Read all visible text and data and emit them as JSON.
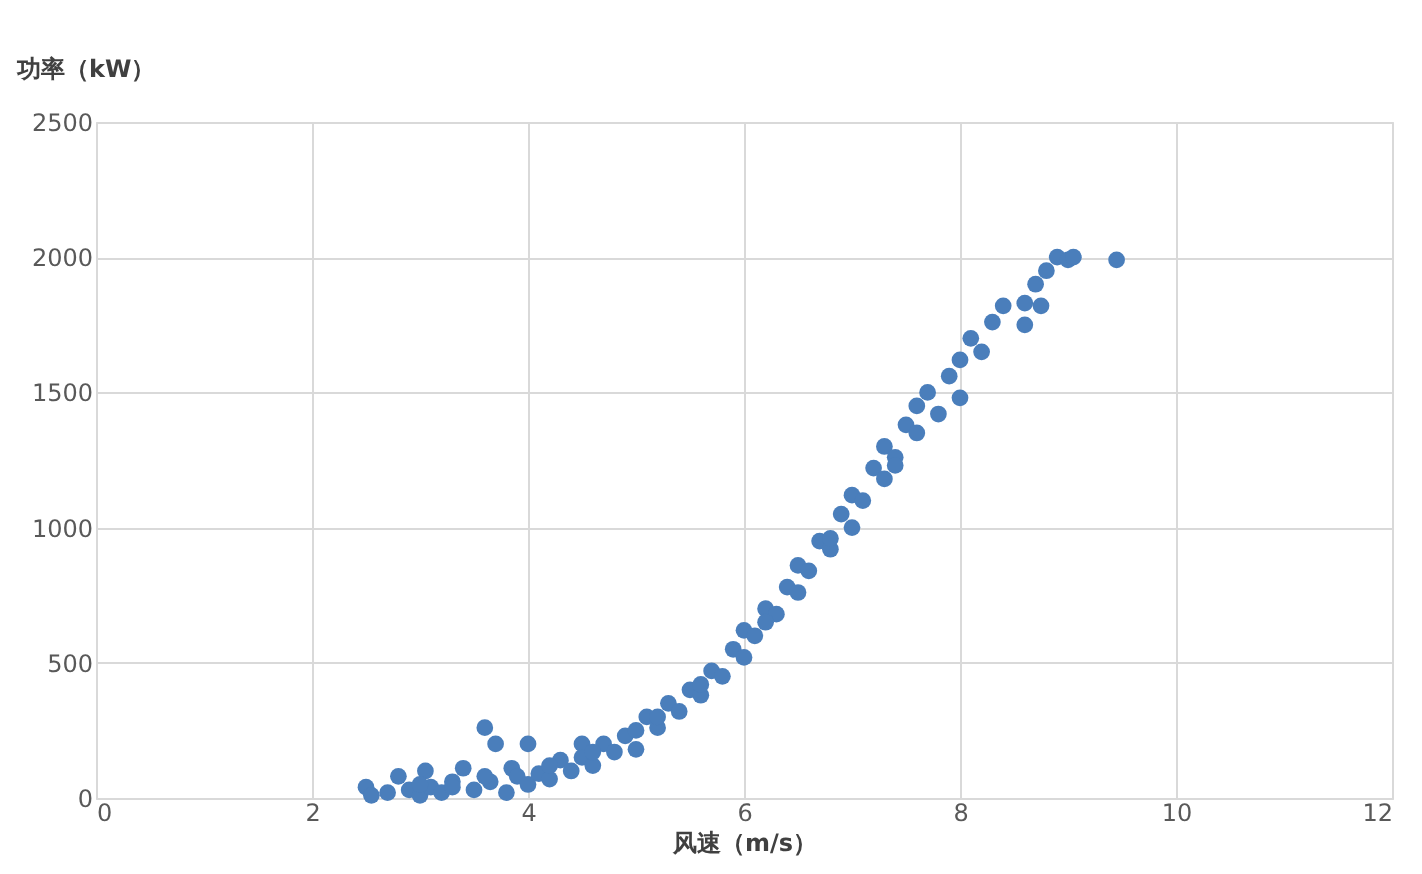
{
  "chart_data": {
    "type": "scatter",
    "xlabel": "风速（m/s）",
    "ylabel": "功率（kW）",
    "xlim": [
      0,
      12
    ],
    "xticks": [
      0,
      2,
      4,
      6,
      8,
      10,
      12
    ],
    "ylim": [
      0,
      2500
    ],
    "yticks": [
      0,
      500,
      1000,
      1500,
      2000,
      2500
    ],
    "grid": true,
    "marker": "circle",
    "legend": false,
    "series": [
      {
        "color": "#4a7ebb",
        "x": [
          2.5,
          2.55,
          2.7,
          2.8,
          2.9,
          3.0,
          3.05,
          3.1,
          3.2,
          3.3,
          3.4,
          3.5,
          3.6,
          3.65,
          3.7,
          3.8,
          3.85,
          3.9,
          4.0,
          4.0,
          4.1,
          4.2,
          4.3,
          4.4,
          4.5,
          4.5,
          4.6,
          4.7,
          4.8,
          4.9,
          5.0,
          5.0,
          5.1,
          5.2,
          5.3,
          5.4,
          5.5,
          5.6,
          5.7,
          5.8,
          5.9,
          6.0,
          6.0,
          6.1,
          6.2,
          6.3,
          6.4,
          6.5,
          6.5,
          6.6,
          6.7,
          6.8,
          6.9,
          7.0,
          7.0,
          7.1,
          7.2,
          7.3,
          7.3,
          7.4,
          7.5,
          7.6,
          7.6,
          7.7,
          7.8,
          7.9,
          8.0,
          8.0,
          8.1,
          8.2,
          8.3,
          8.4,
          8.6,
          8.6,
          8.7,
          8.75,
          8.8,
          8.9,
          9.0,
          9.05,
          9.45,
          3.0,
          3.3,
          3.6,
          4.2,
          4.6,
          5.2,
          5.6,
          6.2,
          6.8,
          7.4
        ],
        "values": [
          40,
          10,
          20,
          80,
          30,
          10,
          100,
          40,
          20,
          60,
          110,
          30,
          260,
          60,
          200,
          20,
          110,
          80,
          200,
          50,
          90,
          70,
          140,
          100,
          200,
          150,
          120,
          200,
          170,
          230,
          180,
          250,
          300,
          260,
          350,
          320,
          400,
          380,
          470,
          450,
          550,
          520,
          620,
          600,
          700,
          680,
          780,
          760,
          860,
          840,
          950,
          920,
          1050,
          1000,
          1120,
          1100,
          1220,
          1180,
          1300,
          1260,
          1380,
          1350,
          1450,
          1500,
          1420,
          1560,
          1620,
          1480,
          1700,
          1650,
          1760,
          1820,
          1830,
          1750,
          1900,
          1820,
          1950,
          2000,
          1990,
          2000,
          1990,
          50,
          40,
          80,
          120,
          170,
          300,
          420,
          650,
          960,
          1230
        ]
      }
    ]
  }
}
